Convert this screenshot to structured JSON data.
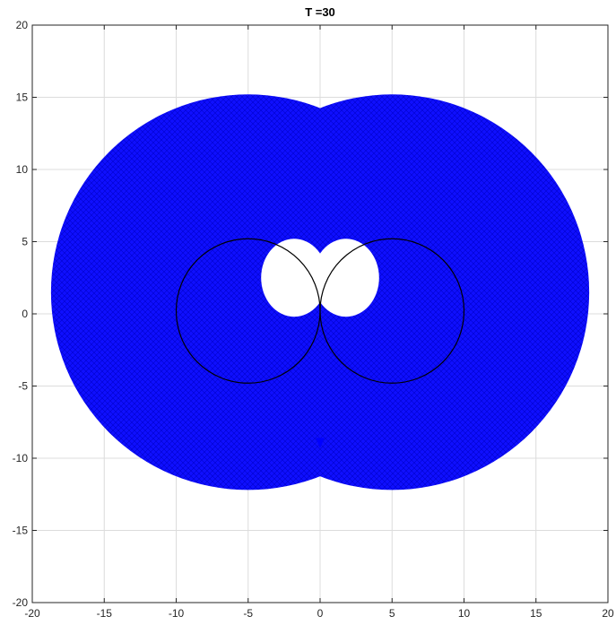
{
  "chart_data": {
    "type": "scatter",
    "title": "T =30",
    "xlabel": "",
    "ylabel": "",
    "xlim": [
      -20,
      20
    ],
    "ylim": [
      -20,
      20
    ],
    "xticks": [
      -20,
      -15,
      -10,
      -5,
      0,
      5,
      10,
      15,
      20
    ],
    "yticks": [
      -20,
      -15,
      -10,
      -5,
      0,
      5,
      10,
      15,
      20
    ],
    "grid": true,
    "marker": "x",
    "series": [
      {
        "kind": "filled-marker-region",
        "color": "#0000ff",
        "lobes": [
          {
            "center": [
              -5,
              1.5
            ],
            "radius": 13.7
          },
          {
            "center": [
              5,
              1.5
            ],
            "radius": 13.7
          }
        ],
        "holes": [
          {
            "center": [
              -1.8,
              2.5
            ],
            "rx": 2.3,
            "ry": 2.7
          },
          {
            "center": [
              1.8,
              2.5
            ],
            "rx": 2.3,
            "ry": 2.7
          }
        ]
      },
      {
        "kind": "circle-outline",
        "color": "#000000",
        "circles": [
          {
            "center": [
              -5,
              0.2
            ],
            "radius": 5.0
          },
          {
            "center": [
              5,
              0.2
            ],
            "radius": 5.0
          }
        ]
      }
    ]
  }
}
